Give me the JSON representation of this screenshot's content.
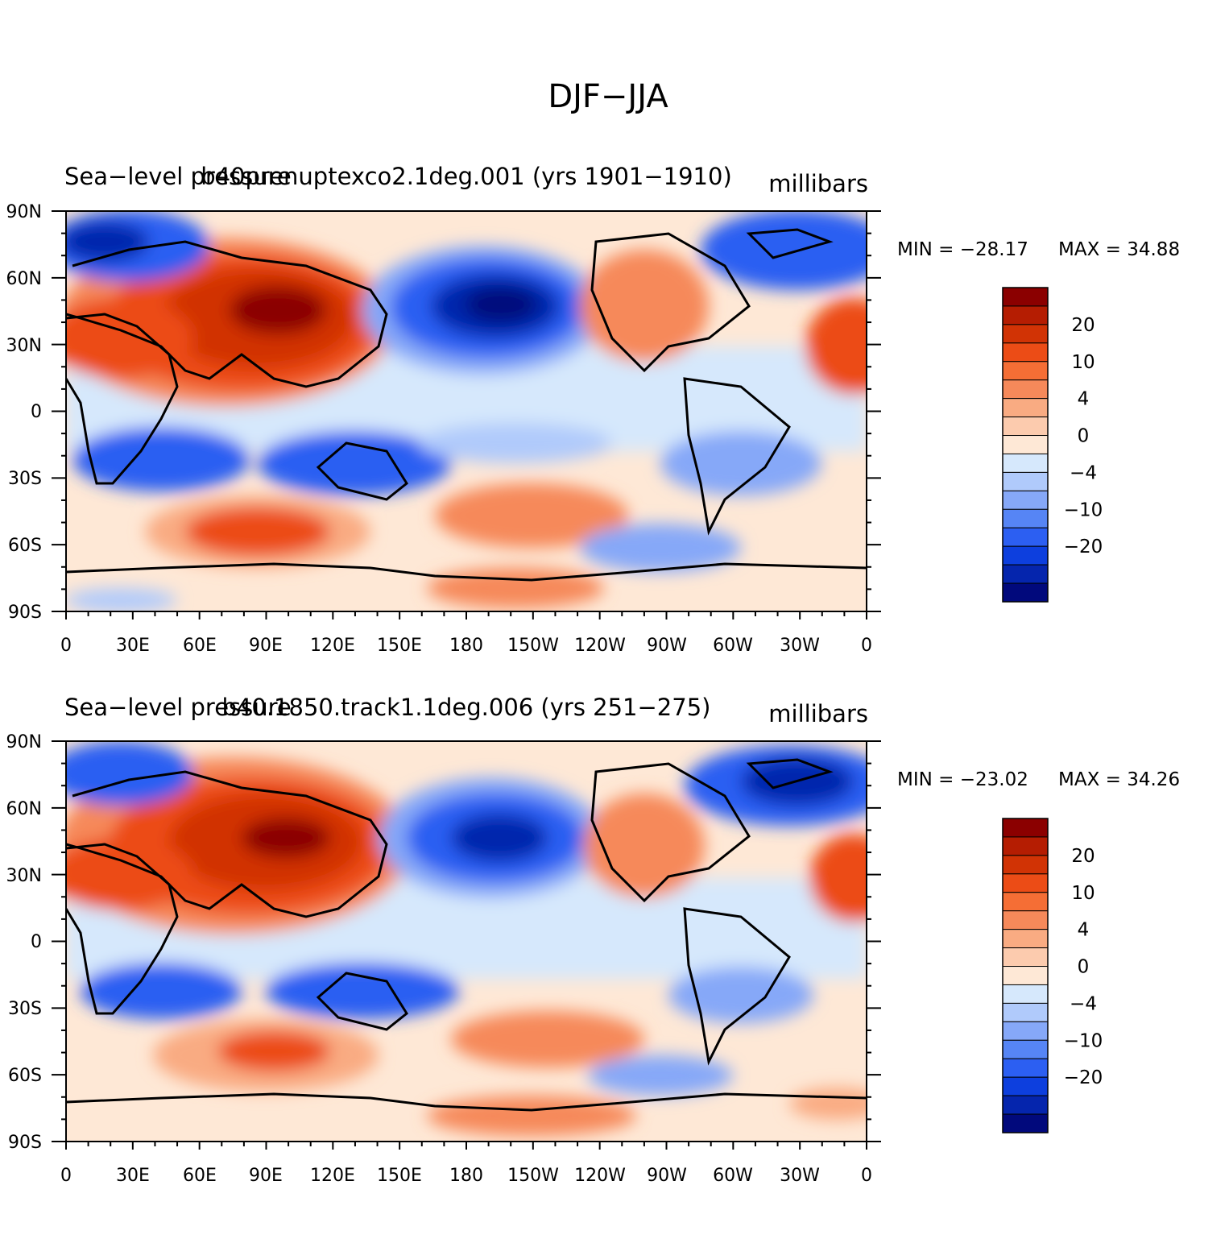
{
  "chart_data": {
    "type": "heatmap",
    "title": "DJF−JJA",
    "panels": [
      {
        "id": "panel-1",
        "left_title": "Sea−level pressure",
        "center_title": "b40prenuptexco2.1deg.001 (yrs 1901−1910)",
        "units": "millibars",
        "min_label": "MIN = −28.17",
        "max_label": "MAX =   34.88",
        "min": -28.17,
        "max": 34.88
      },
      {
        "id": "panel-2",
        "left_title": "Sea−level pressure",
        "center_title": "b40.1850.track1.1deg.006 (yrs 251−275)",
        "units": "millibars",
        "min_label": "MIN = −23.02",
        "max_label": "MAX =   34.26",
        "min": -23.02,
        "max": 34.26
      }
    ],
    "x_ticks": [
      "0",
      "30E",
      "60E",
      "90E",
      "120E",
      "150E",
      "180",
      "150W",
      "120W",
      "90W",
      "60W",
      "30W",
      "0"
    ],
    "y_ticks": [
      "90N",
      "60N",
      "30N",
      "0",
      "30S",
      "60S",
      "90S"
    ],
    "xlim": [
      0,
      360
    ],
    "ylim": [
      -90,
      90
    ],
    "colorbar": {
      "levels": [
        -28,
        -24,
        -20,
        -16,
        -10,
        -8,
        -4,
        -2,
        0,
        2,
        4,
        8,
        10,
        16,
        20,
        24,
        28
      ],
      "labels": [
        "20",
        "10",
        "4",
        "0",
        "−4",
        "−10",
        "−20"
      ],
      "colors": [
        "#8b0000",
        "#b51d02",
        "#d13305",
        "#ec4c16",
        "#f56e35",
        "#f6895a",
        "#f9ab82",
        "#fccbae",
        "#fee8d6",
        "#d6e8fc",
        "#b0cafb",
        "#86a8f8",
        "#5685f5",
        "#2c5ff2",
        "#0d3fde",
        "#0525ad",
        "#01097c"
      ]
    }
  }
}
